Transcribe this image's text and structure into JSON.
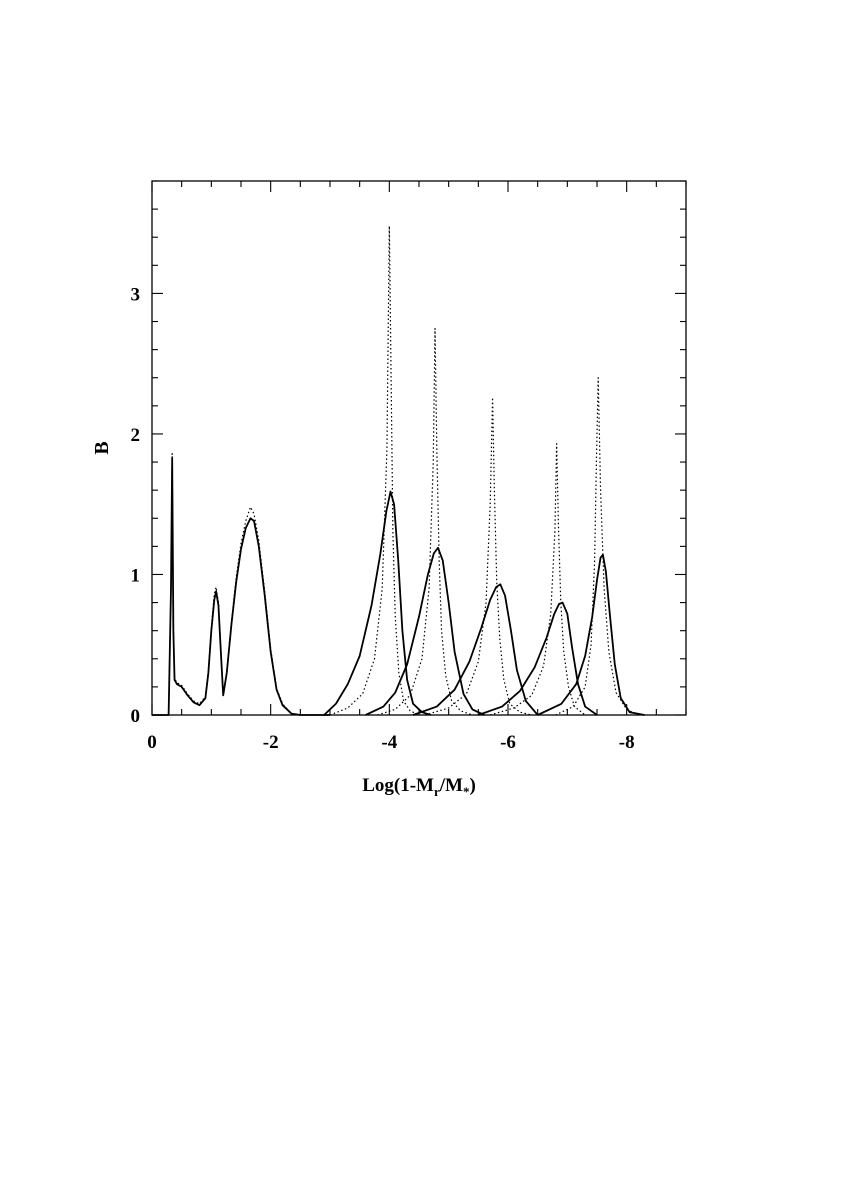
{
  "chart_data": {
    "type": "line",
    "title": "",
    "xlabel": "Log(1-M",
    "xlabel_sub1": "r",
    "xlabel_mid": "/M",
    "xlabel_sub2": "*",
    "xlabel_end": ")",
    "ylabel": "B",
    "xlim": [
      0,
      -9
    ],
    "ylim": [
      0,
      3.8
    ],
    "x_ticks": [
      {
        "value": 0,
        "label": "0"
      },
      {
        "value": -2,
        "label": "-2"
      },
      {
        "value": -4,
        "label": "-4"
      },
      {
        "value": -6,
        "label": "-6"
      },
      {
        "value": -8,
        "label": "-8"
      }
    ],
    "y_ticks": [
      {
        "value": 0,
        "label": "0"
      },
      {
        "value": 1,
        "label": "1"
      },
      {
        "value": 2,
        "label": "2"
      },
      {
        "value": 3,
        "label": "3"
      }
    ],
    "grid": false,
    "legend": "none",
    "series": [
      {
        "style": "solid",
        "x": [
          0.0,
          -0.28,
          -0.32,
          -0.34,
          -0.36,
          -0.38,
          -0.42,
          -0.5,
          -0.6,
          -0.7,
          -0.8,
          -0.9,
          -0.95,
          -1.0,
          -1.05,
          -1.08,
          -1.12,
          -1.16,
          -1.2,
          -1.26,
          -1.34,
          -1.42,
          -1.5,
          -1.58,
          -1.66,
          -1.72,
          -1.8,
          -1.9,
          -2.0,
          -2.1,
          -2.2,
          -2.35,
          -2.5,
          -2.8,
          -3.0
        ],
        "y": [
          0.0,
          0.0,
          0.9,
          1.83,
          0.6,
          0.25,
          0.22,
          0.2,
          0.14,
          0.09,
          0.07,
          0.12,
          0.3,
          0.6,
          0.82,
          0.88,
          0.78,
          0.45,
          0.14,
          0.3,
          0.65,
          0.95,
          1.18,
          1.33,
          1.4,
          1.38,
          1.2,
          0.85,
          0.45,
          0.18,
          0.07,
          0.01,
          0.0,
          0.0,
          0.0
        ]
      },
      {
        "style": "dotted",
        "x": [
          -0.28,
          -0.32,
          -0.34,
          -0.36,
          -0.38,
          -0.42,
          -0.5,
          -0.6,
          -0.7,
          -0.8,
          -0.9,
          -0.95,
          -1.0,
          -1.05,
          -1.08,
          -1.12,
          -1.16,
          -1.2,
          -1.26,
          -1.34,
          -1.42,
          -1.5,
          -1.58,
          -1.66,
          -1.72,
          -1.8,
          -1.9,
          -2.0,
          -2.1,
          -2.2,
          -2.35,
          -2.5
        ],
        "y": [
          0.0,
          0.92,
          1.86,
          0.62,
          0.26,
          0.23,
          0.21,
          0.15,
          0.1,
          0.08,
          0.13,
          0.32,
          0.62,
          0.86,
          0.91,
          0.8,
          0.47,
          0.15,
          0.31,
          0.67,
          0.98,
          1.22,
          1.38,
          1.48,
          1.43,
          1.24,
          0.88,
          0.47,
          0.19,
          0.08,
          0.01,
          0.0
        ]
      },
      {
        "style": "solid",
        "x": [
          -2.9,
          -3.1,
          -3.3,
          -3.5,
          -3.7,
          -3.85,
          -3.95,
          -4.02,
          -4.08,
          -4.15,
          -4.22,
          -4.3,
          -4.4,
          -4.55,
          -4.7
        ],
        "y": [
          0.0,
          0.08,
          0.22,
          0.42,
          0.78,
          1.15,
          1.45,
          1.59,
          1.5,
          1.1,
          0.6,
          0.25,
          0.08,
          0.02,
          0.0
        ]
      },
      {
        "style": "dotted",
        "x": [
          -3.0,
          -3.3,
          -3.55,
          -3.75,
          -3.88,
          -3.96,
          -4.0,
          -4.03,
          -4.06,
          -4.1,
          -4.16,
          -4.24,
          -4.35,
          -4.5
        ],
        "y": [
          0.0,
          0.05,
          0.15,
          0.4,
          0.9,
          1.9,
          3.48,
          2.4,
          1.3,
          0.7,
          0.3,
          0.1,
          0.03,
          0.0
        ]
      },
      {
        "style": "solid",
        "x": [
          -3.6,
          -3.9,
          -4.1,
          -4.3,
          -4.5,
          -4.65,
          -4.75,
          -4.82,
          -4.9,
          -5.0,
          -5.1,
          -5.25,
          -5.4,
          -5.6
        ],
        "y": [
          0.0,
          0.06,
          0.16,
          0.36,
          0.7,
          1.0,
          1.15,
          1.19,
          1.1,
          0.8,
          0.45,
          0.15,
          0.04,
          0.0
        ]
      },
      {
        "style": "dotted",
        "x": [
          -3.8,
          -4.1,
          -4.35,
          -4.55,
          -4.67,
          -4.74,
          -4.77,
          -4.8,
          -4.84,
          -4.88,
          -4.95,
          -5.05,
          -5.2,
          -5.4
        ],
        "y": [
          0.0,
          0.04,
          0.14,
          0.4,
          0.9,
          1.8,
          2.75,
          1.9,
          1.1,
          0.6,
          0.28,
          0.1,
          0.03,
          0.0
        ]
      },
      {
        "style": "solid",
        "x": [
          -4.4,
          -4.8,
          -5.1,
          -5.35,
          -5.55,
          -5.7,
          -5.8,
          -5.87,
          -5.95,
          -6.05,
          -6.15,
          -6.3,
          -6.5
        ],
        "y": [
          0.0,
          0.06,
          0.18,
          0.38,
          0.62,
          0.82,
          0.91,
          0.93,
          0.85,
          0.6,
          0.32,
          0.1,
          0.0
        ]
      },
      {
        "style": "dotted",
        "x": [
          -4.6,
          -5.0,
          -5.3,
          -5.5,
          -5.63,
          -5.7,
          -5.74,
          -5.77,
          -5.81,
          -5.86,
          -5.93,
          -6.03,
          -6.2,
          -6.4
        ],
        "y": [
          0.0,
          0.05,
          0.15,
          0.38,
          0.8,
          1.5,
          2.26,
          1.6,
          0.95,
          0.55,
          0.25,
          0.08,
          0.02,
          0.0
        ]
      },
      {
        "style": "solid",
        "x": [
          -5.5,
          -5.9,
          -6.2,
          -6.45,
          -6.65,
          -6.78,
          -6.86,
          -6.92,
          -7.0,
          -7.08,
          -7.18,
          -7.3,
          -7.5
        ],
        "y": [
          0.0,
          0.06,
          0.17,
          0.34,
          0.55,
          0.72,
          0.79,
          0.8,
          0.72,
          0.48,
          0.22,
          0.06,
          0.0
        ]
      },
      {
        "style": "dotted",
        "x": [
          -5.7,
          -6.1,
          -6.4,
          -6.6,
          -6.72,
          -6.79,
          -6.82,
          -6.85,
          -6.89,
          -6.94,
          -7.02,
          -7.12,
          -7.3
        ],
        "y": [
          0.0,
          0.05,
          0.14,
          0.35,
          0.72,
          1.3,
          1.93,
          1.35,
          0.8,
          0.45,
          0.2,
          0.06,
          0.0
        ]
      },
      {
        "style": "solid",
        "x": [
          -6.5,
          -6.9,
          -7.15,
          -7.3,
          -7.42,
          -7.5,
          -7.56,
          -7.6,
          -7.65,
          -7.72,
          -7.8,
          -7.9,
          -8.05,
          -8.3
        ],
        "y": [
          0.0,
          0.08,
          0.22,
          0.42,
          0.7,
          0.96,
          1.12,
          1.14,
          1.02,
          0.7,
          0.36,
          0.12,
          0.02,
          0.0
        ]
      },
      {
        "style": "dotted",
        "x": [
          -6.8,
          -7.1,
          -7.3,
          -7.4,
          -7.46,
          -7.49,
          -7.52,
          -7.56,
          -7.62,
          -7.7,
          -7.82,
          -8.0,
          -8.2
        ],
        "y": [
          0.0,
          0.06,
          0.2,
          0.5,
          1.1,
          1.8,
          2.4,
          1.6,
          0.9,
          0.45,
          0.16,
          0.04,
          0.0
        ]
      }
    ]
  }
}
